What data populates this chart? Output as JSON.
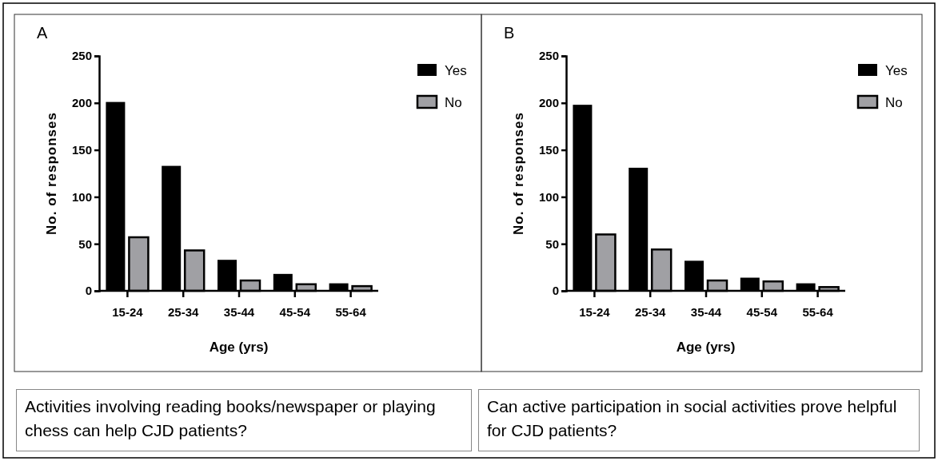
{
  "chart_data": [
    {
      "type": "bar",
      "title": "A",
      "xlabel": "Age (yrs)",
      "ylabel": "No. of responses",
      "categories": [
        "15-24",
        "25-34",
        "35-44",
        "45-54",
        "55-64"
      ],
      "series": [
        {
          "name": "Yes",
          "color": "#000000",
          "values": [
            201,
            133,
            33,
            18,
            8
          ]
        },
        {
          "name": "No",
          "color": "#a0a0a4",
          "values": [
            57,
            43,
            11,
            7,
            5
          ]
        }
      ],
      "ylim": [
        0,
        250
      ],
      "yticks": [
        0,
        50,
        100,
        150,
        200,
        250
      ],
      "grid": false,
      "legend": "top right",
      "annotations": [
        "Activities involving reading books/newspaper or playing chess can help CJD patients?"
      ]
    },
    {
      "type": "bar",
      "title": "B",
      "xlabel": "Age (yrs)",
      "ylabel": "No. of responses",
      "categories": [
        "15-24",
        "25-34",
        "35-44",
        "45-54",
        "55-64"
      ],
      "series": [
        {
          "name": "Yes",
          "color": "#000000",
          "values": [
            198,
            131,
            32,
            14,
            8
          ]
        },
        {
          "name": "No",
          "color": "#a0a0a4",
          "values": [
            60,
            44,
            11,
            10,
            4
          ]
        }
      ],
      "ylim": [
        0,
        250
      ],
      "yticks": [
        0,
        50,
        100,
        150,
        200,
        250
      ],
      "grid": false,
      "legend": "top right",
      "annotations": [
        "Can active participation in social activities prove helpful for CJD patients?"
      ]
    }
  ]
}
